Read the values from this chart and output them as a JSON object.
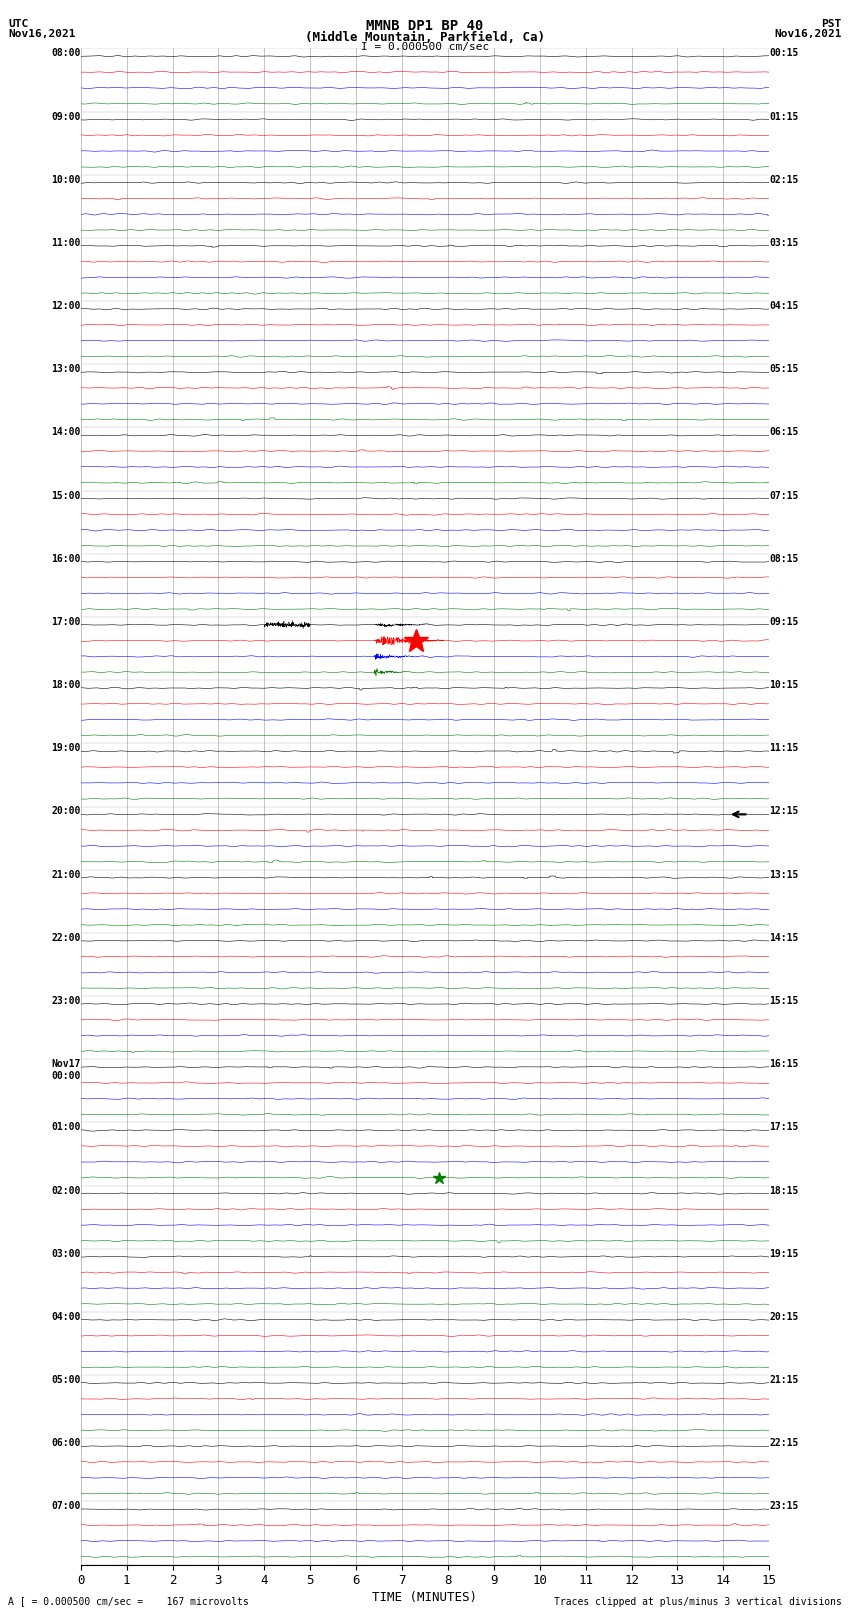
{
  "title_line1": "MMNB DP1 BP 40",
  "title_line2": "(Middle Mountain, Parkfield, Ca)",
  "scale_label": "I = 0.000500 cm/sec",
  "xlabel": "TIME (MINUTES)",
  "footer_left": "A [ = 0.000500 cm/sec =    167 microvolts",
  "footer_right": "Traces clipped at plus/minus 3 vertical divisions",
  "xlim": [
    0,
    15
  ],
  "xticks": [
    0,
    1,
    2,
    3,
    4,
    5,
    6,
    7,
    8,
    9,
    10,
    11,
    12,
    13,
    14,
    15
  ],
  "bg_color": "#ffffff",
  "grid_color": "#888888",
  "utc_times": [
    "08:00",
    "09:00",
    "10:00",
    "11:00",
    "12:00",
    "13:00",
    "14:00",
    "15:00",
    "16:00",
    "17:00",
    "18:00",
    "19:00",
    "20:00",
    "21:00",
    "22:00",
    "23:00",
    "Nov17\n00:00",
    "01:00",
    "02:00",
    "03:00",
    "04:00",
    "05:00",
    "06:00",
    "07:00"
  ],
  "pst_times": [
    "00:15",
    "01:15",
    "02:15",
    "03:15",
    "04:15",
    "05:15",
    "06:15",
    "07:15",
    "08:15",
    "09:15",
    "10:15",
    "11:15",
    "12:15",
    "13:15",
    "14:15",
    "15:15",
    "16:15",
    "17:15",
    "18:15",
    "19:15",
    "20:15",
    "21:15",
    "22:15",
    "23:15"
  ],
  "n_rows": 24,
  "traces_per_row": 4,
  "trace_colors": [
    "black",
    "red",
    "blue",
    "green"
  ],
  "noise_amplitude": 0.018,
  "eq_row": 9,
  "eq_minute": 6.5,
  "eq_marker_color": "red",
  "eq_marker_size": 18,
  "quake2_row": 17,
  "quake2_minute": 7.8,
  "quake2_marker_color": "green",
  "quake2_marker_size": 9,
  "arrow_row": 12,
  "arrow_minute": 14.5,
  "arrow_row_utc": 5
}
